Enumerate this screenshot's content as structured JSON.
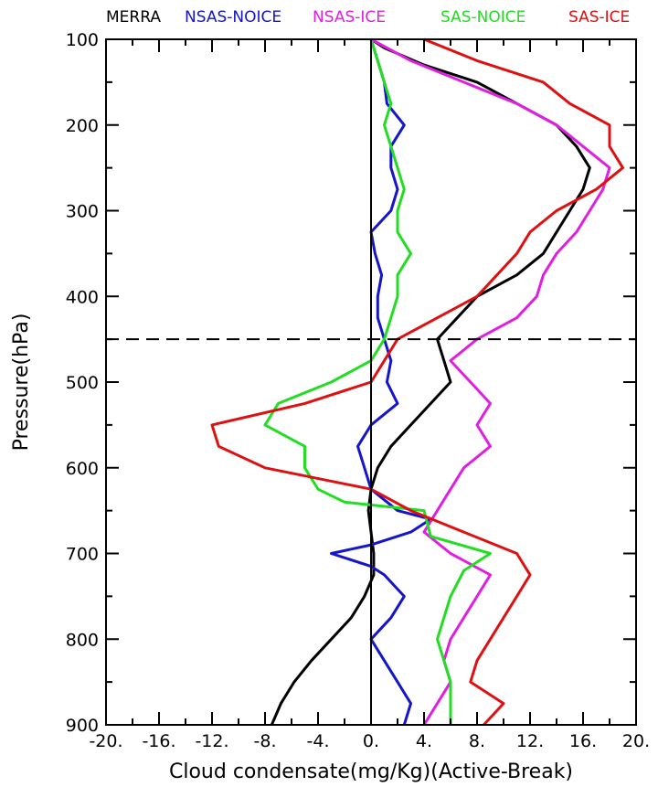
{
  "chart_data": {
    "type": "line",
    "xlabel": "Cloud condensate(mg/Kg)(Active-Break)",
    "ylabel": "Pressure(hPa)",
    "xlim": [
      -20,
      20
    ],
    "ylim": [
      100,
      900
    ],
    "y_inverted": true,
    "x_ticks": [
      -20,
      -16,
      -12,
      -8,
      -4,
      0,
      4,
      8,
      12,
      16,
      20
    ],
    "x_tick_labels": [
      "-20.",
      "-16.",
      "-12.",
      "-8.",
      "-4.",
      "0.",
      "4.",
      "8.",
      "12.",
      "16.",
      "20."
    ],
    "y_ticks": [
      100,
      200,
      300,
      400,
      500,
      600,
      700,
      800,
      900
    ],
    "y_tick_labels": [
      "100",
      "200",
      "300",
      "400",
      "500",
      "600",
      "700",
      "800",
      "900"
    ],
    "reference_lines": {
      "vertical_x": 0,
      "horizontal_dashed_y": 450
    },
    "legend_position": "top",
    "series": [
      {
        "name": "MERRA",
        "color": "#000000",
        "points": [
          [
            0,
            100
          ],
          [
            1,
            110
          ],
          [
            4,
            130
          ],
          [
            8,
            150
          ],
          [
            11,
            175
          ],
          [
            14,
            200
          ],
          [
            15.5,
            225
          ],
          [
            16.5,
            250
          ],
          [
            16,
            275
          ],
          [
            15,
            300
          ],
          [
            14,
            325
          ],
          [
            13,
            350
          ],
          [
            11,
            375
          ],
          [
            8,
            400
          ],
          [
            6.5,
            425
          ],
          [
            5,
            450
          ],
          [
            5.5,
            475
          ],
          [
            6,
            500
          ],
          [
            4.5,
            525
          ],
          [
            3,
            550
          ],
          [
            1.5,
            575
          ],
          [
            0.5,
            600
          ],
          [
            0,
            625
          ],
          [
            -0.2,
            650
          ],
          [
            0,
            675
          ],
          [
            0.2,
            700
          ],
          [
            0.2,
            725
          ],
          [
            -0.5,
            750
          ],
          [
            -1.5,
            775
          ],
          [
            -3,
            800
          ],
          [
            -4.5,
            825
          ],
          [
            -5.8,
            850
          ],
          [
            -6.8,
            875
          ],
          [
            -7.5,
            900
          ]
        ]
      },
      {
        "name": "NSAS-NOICE",
        "color": "#1515cc",
        "points": [
          [
            0,
            100
          ],
          [
            0.5,
            125
          ],
          [
            1,
            150
          ],
          [
            1.2,
            175
          ],
          [
            2.5,
            200
          ],
          [
            1.5,
            225
          ],
          [
            1.5,
            250
          ],
          [
            2,
            275
          ],
          [
            1.5,
            300
          ],
          [
            0,
            325
          ],
          [
            0.3,
            350
          ],
          [
            0.8,
            375
          ],
          [
            0.5,
            400
          ],
          [
            0.5,
            425
          ],
          [
            1,
            450
          ],
          [
            1.5,
            475
          ],
          [
            1.2,
            500
          ],
          [
            2,
            525
          ],
          [
            0,
            550
          ],
          [
            -1,
            575
          ],
          [
            -0.5,
            600
          ],
          [
            0,
            625
          ],
          [
            2,
            650
          ],
          [
            4.5,
            660
          ],
          [
            3,
            675
          ],
          [
            0,
            690
          ],
          [
            -3,
            700
          ],
          [
            0,
            715
          ],
          [
            1,
            725
          ],
          [
            2.5,
            750
          ],
          [
            1.5,
            775
          ],
          [
            0,
            800
          ],
          [
            1,
            825
          ],
          [
            2,
            850
          ],
          [
            3,
            875
          ],
          [
            2.5,
            900
          ]
        ]
      },
      {
        "name": "NSAS-ICE",
        "color": "#e020e0",
        "points": [
          [
            0,
            100
          ],
          [
            3,
            125
          ],
          [
            7,
            150
          ],
          [
            11,
            175
          ],
          [
            14,
            200
          ],
          [
            16,
            225
          ],
          [
            18,
            250
          ],
          [
            17.5,
            275
          ],
          [
            16.5,
            300
          ],
          [
            15.5,
            325
          ],
          [
            14,
            350
          ],
          [
            13,
            375
          ],
          [
            12.5,
            400
          ],
          [
            11,
            425
          ],
          [
            8,
            450
          ],
          [
            6,
            475
          ],
          [
            7.5,
            500
          ],
          [
            9,
            525
          ],
          [
            8,
            550
          ],
          [
            9,
            575
          ],
          [
            7,
            600
          ],
          [
            6,
            625
          ],
          [
            5,
            650
          ],
          [
            4,
            675
          ],
          [
            6,
            700
          ],
          [
            9,
            725
          ],
          [
            8,
            750
          ],
          [
            7,
            775
          ],
          [
            6,
            800
          ],
          [
            5.5,
            825
          ],
          [
            6,
            850
          ],
          [
            5,
            875
          ],
          [
            4,
            900
          ]
        ]
      },
      {
        "name": "SAS-NOICE",
        "color": "#22dd22",
        "points": [
          [
            0,
            100
          ],
          [
            0.5,
            125
          ],
          [
            1,
            150
          ],
          [
            1.5,
            175
          ],
          [
            1,
            200
          ],
          [
            1.5,
            225
          ],
          [
            2,
            250
          ],
          [
            2.5,
            275
          ],
          [
            2,
            300
          ],
          [
            2,
            325
          ],
          [
            3,
            350
          ],
          [
            2,
            375
          ],
          [
            2,
            400
          ],
          [
            1.5,
            425
          ],
          [
            1,
            450
          ],
          [
            0,
            475
          ],
          [
            -3,
            500
          ],
          [
            -7,
            525
          ],
          [
            -8,
            550
          ],
          [
            -5,
            575
          ],
          [
            -5,
            600
          ],
          [
            -4,
            625
          ],
          [
            -2,
            640
          ],
          [
            4,
            650
          ],
          [
            4.5,
            680
          ],
          [
            9,
            700
          ],
          [
            7,
            720
          ],
          [
            6,
            750
          ],
          [
            5,
            800
          ],
          [
            5.5,
            825
          ],
          [
            6,
            850
          ],
          [
            6,
            875
          ],
          [
            6,
            900
          ]
        ]
      },
      {
        "name": "SAS-ICE",
        "color": "#dd1111",
        "points": [
          [
            4,
            100
          ],
          [
            8,
            125
          ],
          [
            13,
            150
          ],
          [
            15,
            175
          ],
          [
            18,
            200
          ],
          [
            18,
            225
          ],
          [
            19,
            250
          ],
          [
            17,
            275
          ],
          [
            14,
            300
          ],
          [
            12,
            325
          ],
          [
            11,
            350
          ],
          [
            9.5,
            375
          ],
          [
            8,
            400
          ],
          [
            5,
            425
          ],
          [
            2,
            450
          ],
          [
            1,
            475
          ],
          [
            0,
            500
          ],
          [
            -5,
            525
          ],
          [
            -12,
            550
          ],
          [
            -11.5,
            575
          ],
          [
            -8,
            600
          ],
          [
            0,
            625
          ],
          [
            3,
            650
          ],
          [
            7,
            675
          ],
          [
            11,
            700
          ],
          [
            12,
            725
          ],
          [
            11,
            750
          ],
          [
            10,
            775
          ],
          [
            9,
            800
          ],
          [
            8,
            825
          ],
          [
            7.5,
            850
          ],
          [
            10,
            875
          ],
          [
            8.5,
            900
          ]
        ]
      }
    ]
  }
}
